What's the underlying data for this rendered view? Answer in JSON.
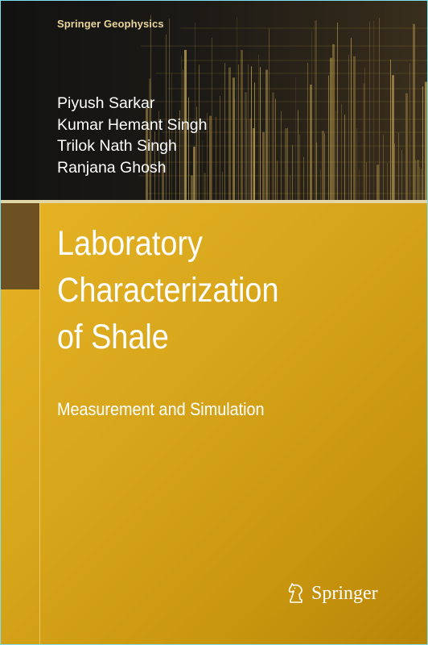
{
  "series": "Springer Geophysics",
  "authors": [
    "Piyush Sarkar",
    "Kumar Hemant Singh",
    "Trilok Nath Singh",
    "Ranjana Ghosh"
  ],
  "title_lines": [
    "Laboratory",
    "Characterization",
    "of Shale"
  ],
  "subtitle": "Measurement and Simulation",
  "publisher": {
    "name": "Springer",
    "logo_icon": "knight-chess-piece-icon"
  },
  "colors": {
    "panel": "#d8a61b",
    "band": "#1c1a16",
    "side_block": "#6d5123",
    "series_text": "#e9d69c",
    "text": "#ffffff",
    "frame": "#7ee0f0"
  }
}
